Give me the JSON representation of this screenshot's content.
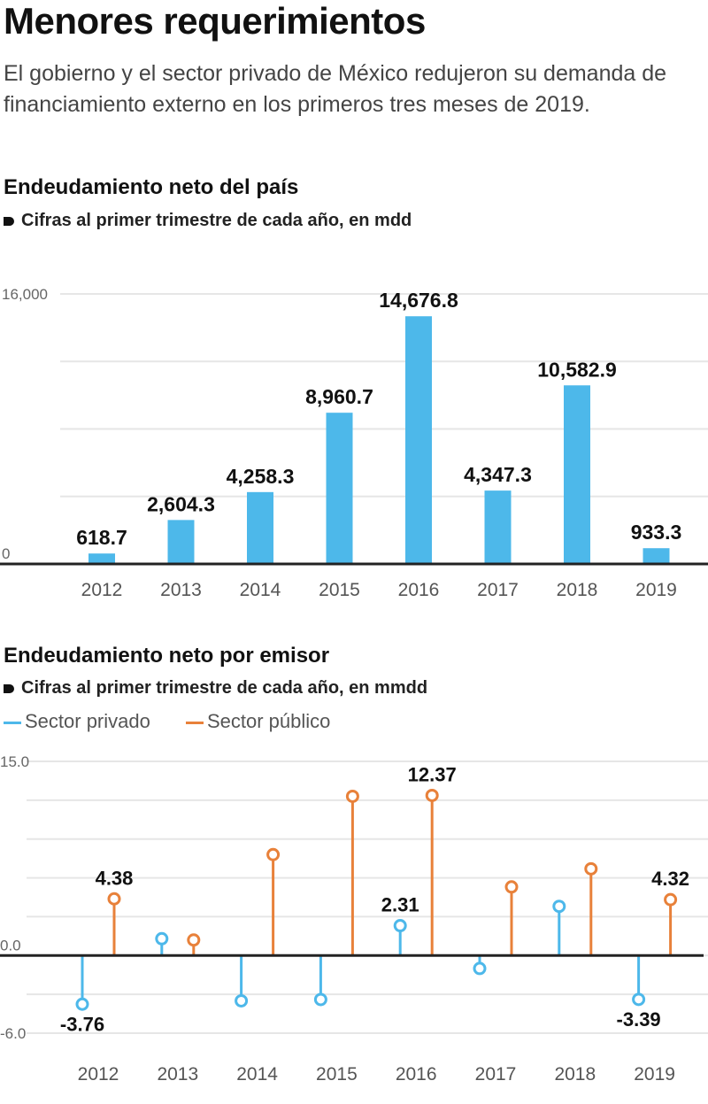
{
  "title": "Menores requerimientos",
  "intro": "El gobierno y el sector privado de México redujeron su demanda de financiamiento externo en los primeros tres meses de 2019.",
  "colors": {
    "blue": "#4db8ea",
    "orange": "#e8813a"
  },
  "chart_data": [
    {
      "type": "bar",
      "title": "Endeudamiento neto del país",
      "subtitle": "Cifras al primer trimestre de cada año, en mdd",
      "categories": [
        "2012",
        "2013",
        "2014",
        "2015",
        "2016",
        "2017",
        "2018",
        "2019"
      ],
      "values": [
        618.7,
        2604.3,
        4258.3,
        8960.7,
        14676.8,
        4347.3,
        10582.9,
        933.3
      ],
      "labels": [
        "618.7",
        "2,604.3",
        "4,258.3",
        "8,960.7",
        "14,676.8",
        "4,347.3",
        "10,582.9",
        "933.3"
      ],
      "yticks": [
        "0",
        "16,000"
      ],
      "ylim": [
        0,
        16000
      ]
    },
    {
      "type": "lollipop",
      "title": "Endeudamiento neto por emisor",
      "subtitle": "Cifras al primer trimestre de cada año, en mmdd",
      "categories": [
        "2012",
        "2013",
        "2014",
        "2015",
        "2016",
        "2017",
        "2018",
        "2019"
      ],
      "series": [
        {
          "name": "Sector privado",
          "values": [
            -3.76,
            1.3,
            -3.5,
            -3.4,
            2.31,
            -1.0,
            3.8,
            -3.39
          ],
          "labels": [
            "-3.76",
            "",
            "",
            "",
            "2.31",
            "",
            "",
            "-3.39"
          ]
        },
        {
          "name": "Sector público",
          "values": [
            4.38,
            1.2,
            7.8,
            12.3,
            12.37,
            5.3,
            6.7,
            4.32
          ],
          "labels": [
            "4.38",
            "",
            "",
            "",
            "12.37",
            "",
            "",
            "4.32"
          ]
        }
      ],
      "yticks": [
        "-6.0",
        "0.0",
        "15.0"
      ],
      "ylim": [
        -6,
        15
      ]
    }
  ]
}
